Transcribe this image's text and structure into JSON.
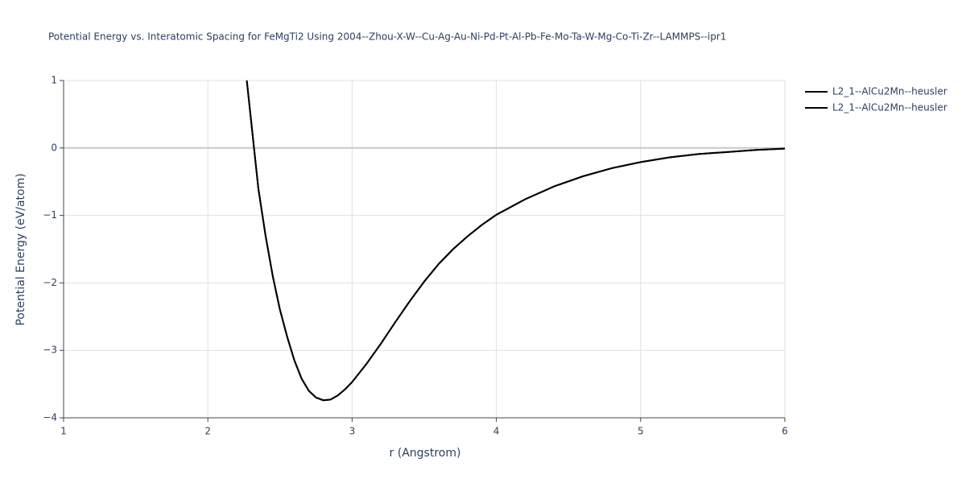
{
  "chart_data": {
    "type": "line",
    "title": "Potential Energy vs. Interatomic Spacing for FeMgTi2 Using 2004--Zhou-X-W--Cu-Ag-Au-Ni-Pd-Pt-Al-Pb-Fe-Mo-Ta-W-Mg-Co-Ti-Zr--LAMMPS--ipr1",
    "x_label": "r (Angstrom)",
    "y_label": "Potential Energy (eV/atom)",
    "x": [
      2.27,
      2.32,
      2.35,
      2.4,
      2.45,
      2.5,
      2.55,
      2.6,
      2.65,
      2.7,
      2.75,
      2.8,
      2.85,
      2.9,
      2.95,
      3.0,
      3.1,
      3.2,
      3.3,
      3.4,
      3.5,
      3.6,
      3.7,
      3.8,
      3.9,
      4.0,
      4.2,
      4.4,
      4.6,
      4.8,
      5.0,
      5.2,
      5.4,
      5.6,
      5.8,
      6.0
    ],
    "series": [
      {
        "name": "L2_1--AlCu2Mn--heusler",
        "color": "#000000",
        "values": [
          1.0,
          0,
          -0.6,
          -1.3,
          -1.9,
          -2.4,
          -2.8,
          -3.15,
          -3.42,
          -3.6,
          -3.7,
          -3.74,
          -3.73,
          -3.67,
          -3.58,
          -3.47,
          -3.2,
          -2.9,
          -2.58,
          -2.27,
          -1.98,
          -1.72,
          -1.5,
          -1.31,
          -1.14,
          -0.99,
          -0.76,
          -0.57,
          -0.42,
          -0.3,
          -0.21,
          -0.14,
          -0.09,
          -0.06,
          -0.03,
          -0.01
        ]
      },
      {
        "name": "L2_1--AlCu2Mn--heusler",
        "color": "#000000",
        "values": [
          1.0,
          0,
          -0.6,
          -1.3,
          -1.9,
          -2.4,
          -2.8,
          -3.15,
          -3.42,
          -3.6,
          -3.7,
          -3.74,
          -3.73,
          -3.67,
          -3.58,
          -3.47,
          -3.2,
          -2.9,
          -2.58,
          -2.27,
          -1.98,
          -1.72,
          -1.5,
          -1.31,
          -1.14,
          -0.99,
          -0.76,
          -0.57,
          -0.42,
          -0.3,
          -0.21,
          -0.14,
          -0.09,
          -0.06,
          -0.03,
          -0.01
        ]
      }
    ],
    "xlim": [
      1,
      6
    ],
    "xticks": [
      1,
      2,
      3,
      4,
      5,
      6
    ],
    "ylim": [
      -4,
      1
    ],
    "yticks": [
      {
        "value": -4,
        "label": "−4"
      },
      {
        "value": -3,
        "label": "−3"
      },
      {
        "value": -2,
        "label": "−2"
      },
      {
        "value": -1,
        "label": "−1"
      },
      0,
      1
    ],
    "grid": true
  }
}
